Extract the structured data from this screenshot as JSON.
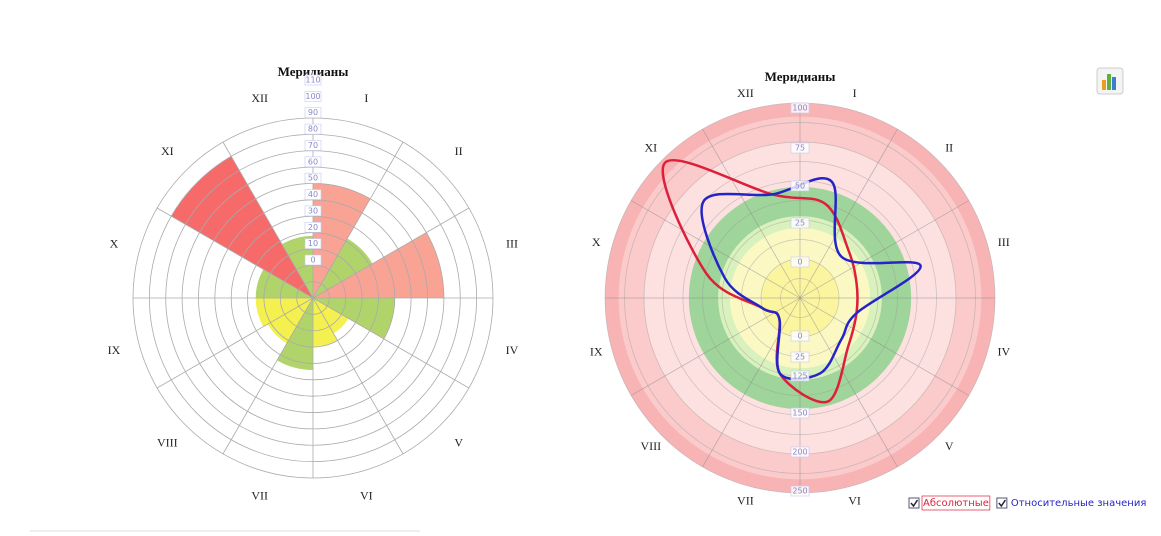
{
  "chart_data": [
    {
      "type": "polar_bar",
      "title": "Меридианы",
      "categories": [
        "I",
        "II",
        "III",
        "IV",
        "V",
        "VI",
        "VII",
        "VIII",
        "IX",
        "X",
        "XI",
        "XII"
      ],
      "values": [
        70,
        42,
        80,
        50,
        25,
        30,
        44,
        32,
        35,
        35,
        100,
        38
      ],
      "colors": [
        "#f8998a",
        "#a8cf5a",
        "#f8998a",
        "#a8cf5a",
        "#f3ee3c",
        "#f3ee3c",
        "#a8cf5a",
        "#f3ee3c",
        "#f3ee3c",
        "#a8cf5a",
        "#f55a5a",
        "#a8cf5a"
      ],
      "rlim": [
        0,
        110
      ],
      "rticks": [
        0,
        10,
        20,
        30,
        40,
        50,
        60,
        70,
        80,
        90,
        100,
        110
      ]
    },
    {
      "type": "polar_line",
      "title": "Меридианы",
      "categories": [
        "I",
        "II",
        "III",
        "IV",
        "V",
        "VI",
        "VII",
        "VIII",
        "IX",
        "X",
        "XI",
        "XII"
      ],
      "rlim": [
        0,
        100
      ],
      "radial_labels": [
        "100",
        "75",
        "50",
        "25",
        "0",
        "0",
        "25",
        "125",
        "150",
        "200",
        "250"
      ],
      "series": [
        {
          "name": "Абсолютные",
          "color": "#dd1f3a",
          "values": [
            50,
            35,
            30,
            30,
            35,
            55,
            40,
            15,
            20,
            50,
            98,
            55
          ]
        },
        {
          "name": "Относительные значения",
          "color": "#2424c8",
          "values": [
            62,
            30,
            64,
            30,
            30,
            40,
            40,
            15,
            20,
            40,
            70,
            55
          ]
        }
      ]
    }
  ]
}
